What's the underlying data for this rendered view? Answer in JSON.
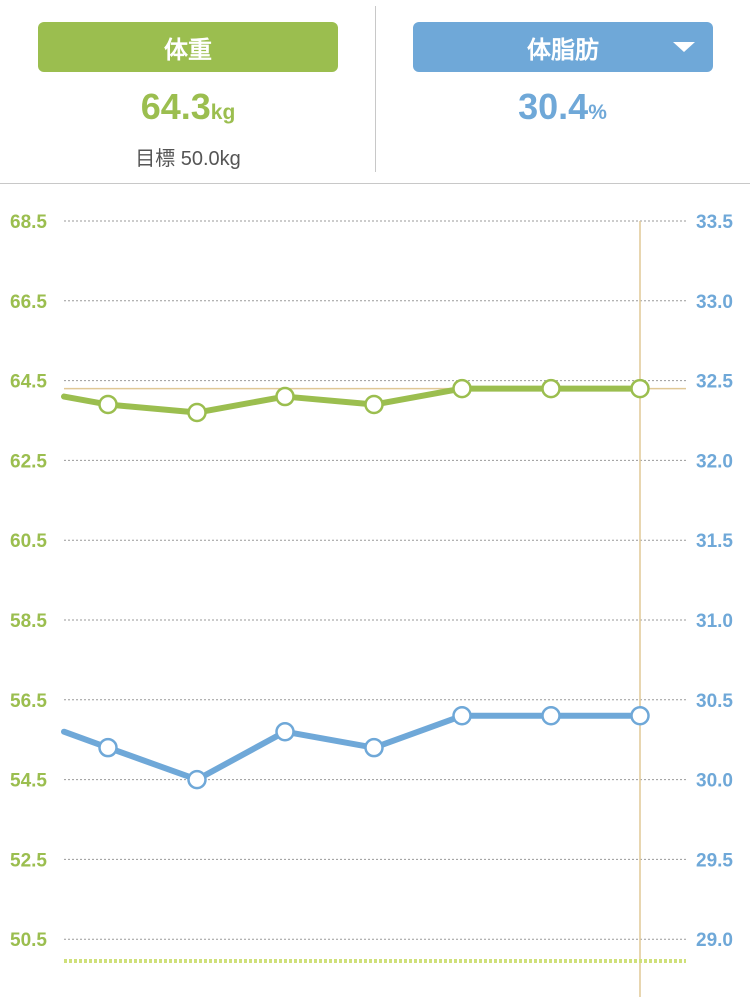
{
  "header": {
    "weight": {
      "label": "体重",
      "value": "64.3",
      "unit": "kg",
      "goal_label": "目標",
      "goal_value": "50.0kg"
    },
    "body_fat": {
      "label": "体脂肪",
      "value": "30.4",
      "unit": "%"
    }
  },
  "colors": {
    "weight": "#9bbe4f",
    "body_fat": "#6fa8d8",
    "grid": "#9a9a9a",
    "marker_line": "#e0c896",
    "goal_line": "#cfe07a"
  },
  "chart_data": {
    "type": "line",
    "title": "",
    "xlabel": "",
    "grid": true,
    "left_axis": {
      "ylim": [
        49.5,
        68.5
      ],
      "ticks": [
        "68.5",
        "66.5",
        "64.5",
        "62.5",
        "60.5",
        "58.5",
        "56.5",
        "54.5",
        "52.5",
        "50.5"
      ]
    },
    "right_axis": {
      "ylim": [
        28.8,
        33.5
      ],
      "ticks": [
        "33.5",
        "33.0",
        "32.5",
        "32.0",
        "31.5",
        "31.0",
        "30.5",
        "30.0",
        "29.5",
        "29.0"
      ]
    },
    "series": [
      {
        "axis": "left",
        "values": [
          64.1,
          63.9,
          63.7,
          64.1,
          63.9,
          64.3,
          64.3,
          64.3
        ],
        "first_point_hidden": true
      },
      {
        "axis": "right",
        "values": [
          30.3,
          30.2,
          30.0,
          30.3,
          30.2,
          30.4,
          30.4,
          30.4
        ],
        "first_point_hidden": true
      }
    ],
    "left_reference_value": 64.3,
    "goal_value": 50.0
  }
}
